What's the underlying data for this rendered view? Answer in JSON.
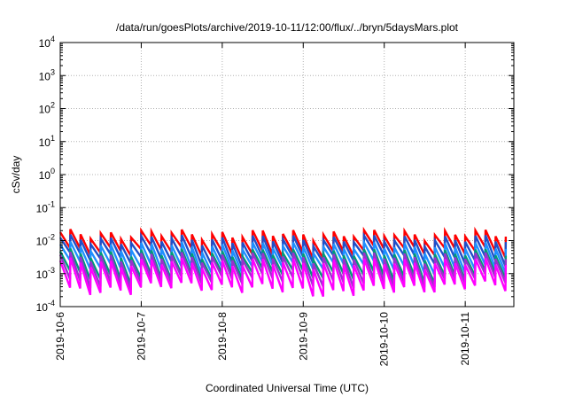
{
  "chart_data": {
    "type": "line",
    "title": "/data/run/goesPlots/archive/2019-10-11/12:00/flux/../bryn/5daysMars.plot",
    "xlabel": "Coordinated Universal Time (UTC)",
    "ylabel": "cSv/day",
    "yscale": "log",
    "ylim": [
      0.0001,
      10000
    ],
    "xlim": [
      0,
      5.6
    ],
    "grid": true,
    "x_ticks": [
      {
        "label": "2019-10-6",
        "value": 0
      },
      {
        "label": "2019-10-7",
        "value": 1
      },
      {
        "label": "2019-10-8",
        "value": 2
      },
      {
        "label": "2019-10-9",
        "value": 3
      },
      {
        "label": "2019-10-10",
        "value": 4
      },
      {
        "label": "2019-10-11",
        "value": 5
      }
    ],
    "y_ticks": [
      {
        "base": "10",
        "exp": "-4",
        "value": 0.0001
      },
      {
        "base": "10",
        "exp": "-3",
        "value": 0.001
      },
      {
        "base": "10",
        "exp": "-2",
        "value": 0.01
      },
      {
        "base": "10",
        "exp": "-1",
        "value": 0.1
      },
      {
        "base": "10",
        "exp": "0",
        "value": 1
      },
      {
        "base": "10",
        "exp": "1",
        "value": 10
      },
      {
        "base": "10",
        "exp": "2",
        "value": 100
      },
      {
        "base": "10",
        "exp": "3",
        "value": 1000
      },
      {
        "base": "10",
        "exp": "4",
        "value": 10000
      }
    ],
    "sawtooth_period_days": 0.125,
    "series": [
      {
        "color": "#ff0000",
        "peak": 0.016,
        "trough": 0.0045
      },
      {
        "color": "#1f4fc8",
        "peak": 0.011,
        "trough": 0.0028
      },
      {
        "color": "#1e90ff",
        "peak": 0.0068,
        "trough": 0.0016
      },
      {
        "color": "#009b77",
        "peak": 0.0042,
        "trough": 0.0009
      },
      {
        "color": "#9932cc",
        "peak": 0.0033,
        "trough": 0.0006
      },
      {
        "color": "#ff00ff",
        "peak": 0.0022,
        "trough": 0.00035
      }
    ]
  }
}
